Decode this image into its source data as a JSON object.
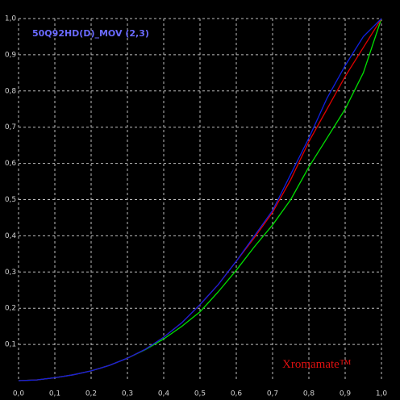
{
  "chart_data": {
    "type": "line",
    "title": "50Q92HD(D)_MOV (2,3)",
    "annotation": "Xromamate™",
    "x": [
      0,
      0.05,
      0.1,
      0.15,
      0.2,
      0.25,
      0.3,
      0.35,
      0.4,
      0.45,
      0.5,
      0.55,
      0.6,
      0.65,
      0.7,
      0.75,
      0.8,
      0.85,
      0.9,
      0.95,
      1
    ],
    "series": [
      {
        "color": "#00e000",
        "values": [
          0,
          0.002,
          0.008,
          0.016,
          0.027,
          0.042,
          0.062,
          0.086,
          0.115,
          0.15,
          0.19,
          0.245,
          0.305,
          0.37,
          0.43,
          0.5,
          0.59,
          0.67,
          0.75,
          0.85,
          1
        ]
      },
      {
        "color": "#e00000",
        "values": [
          0,
          0.002,
          0.008,
          0.016,
          0.027,
          0.042,
          0.062,
          0.087,
          0.12,
          0.16,
          0.21,
          0.265,
          0.33,
          0.395,
          0.465,
          0.555,
          0.66,
          0.75,
          0.84,
          0.92,
          1
        ]
      },
      {
        "color": "#1020e0",
        "values": [
          0,
          0.002,
          0.008,
          0.016,
          0.027,
          0.042,
          0.062,
          0.087,
          0.12,
          0.16,
          0.21,
          0.265,
          0.33,
          0.4,
          0.47,
          0.57,
          0.67,
          0.78,
          0.87,
          0.95,
          1
        ]
      }
    ],
    "xlim": [
      0,
      1
    ],
    "ylim": [
      0,
      1
    ],
    "xticks": [
      {
        "value": 0,
        "label": "0,0"
      },
      {
        "value": 0.1,
        "label": "0,1"
      },
      {
        "value": 0.2,
        "label": "0,2"
      },
      {
        "value": 0.3,
        "label": "0,3"
      },
      {
        "value": 0.4,
        "label": "0,4"
      },
      {
        "value": 0.5,
        "label": "0,5"
      },
      {
        "value": 0.6,
        "label": "0,6"
      },
      {
        "value": 0.7,
        "label": "0,7"
      },
      {
        "value": 0.8,
        "label": "0,8"
      },
      {
        "value": 0.9,
        "label": "0,9"
      },
      {
        "value": 1,
        "label": "1,0"
      }
    ],
    "yticks": [
      {
        "value": 0.1,
        "label": "0,1"
      },
      {
        "value": 0.2,
        "label": "0,2"
      },
      {
        "value": 0.3,
        "label": "0,3"
      },
      {
        "value": 0.4,
        "label": "0,4"
      },
      {
        "value": 0.5,
        "label": "0,5"
      },
      {
        "value": 0.6,
        "label": "0,6"
      },
      {
        "value": 0.7,
        "label": "0,7"
      },
      {
        "value": 0.8,
        "label": "0,8"
      },
      {
        "value": 0.9,
        "label": "0,9"
      },
      {
        "value": 1,
        "label": "1,0"
      }
    ],
    "grid": true
  }
}
